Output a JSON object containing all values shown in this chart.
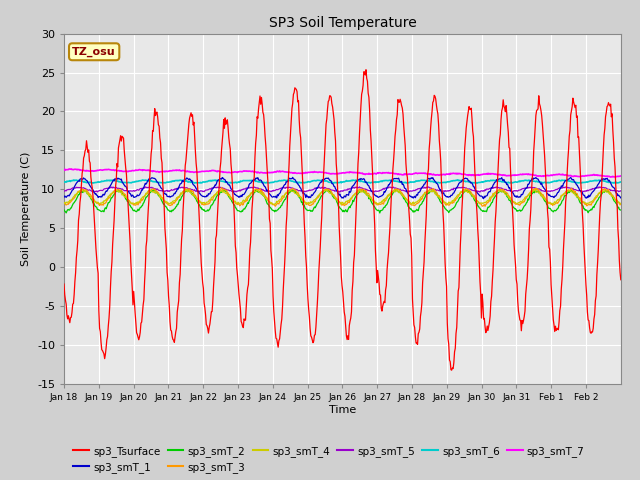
{
  "title": "SP3 Soil Temperature",
  "xlabel": "Time",
  "ylabel": "Soil Temperature (C)",
  "ylim": [
    -15,
    30
  ],
  "tz_label": "TZ_osu",
  "fig_bg_color": "#d0d0d0",
  "plot_bg_color": "#e8e8e8",
  "series_colors": {
    "sp3_Tsurface": "#ff0000",
    "sp3_smT_1": "#0000cc",
    "sp3_smT_2": "#00cc00",
    "sp3_smT_3": "#ff9900",
    "sp3_smT_4": "#cccc00",
    "sp3_smT_5": "#9900cc",
    "sp3_smT_6": "#00cccc",
    "sp3_smT_7": "#ff00ff"
  },
  "xtick_labels": [
    "Jan 18",
    "Jan 19",
    "Jan 20",
    "Jan 21",
    "Jan 22",
    "Jan 23",
    "Jan 24",
    "Jan 25",
    "Jan 26",
    "Jan 27",
    "Jan 28",
    "Jan 29",
    "Jan 30",
    "Jan 31",
    "Feb 1",
    "Feb 2"
  ],
  "ytick_labels": [
    -15,
    -10,
    -5,
    0,
    5,
    10,
    15,
    20,
    25,
    30
  ],
  "n_points": 768
}
